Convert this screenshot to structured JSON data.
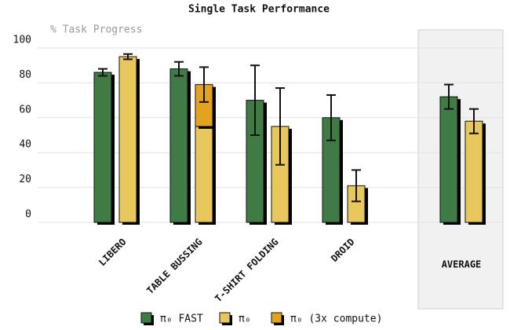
{
  "chart_data": {
    "type": "bar",
    "title": "Single Task Performance",
    "subtitle": "% Task Progress",
    "categories": [
      "LIBERO",
      "TABLE BUSSING",
      "T-SHIRT FOLDING",
      "DROID",
      "AVERAGE"
    ],
    "series": [
      {
        "name": "π₀ FAST",
        "color": "#407a45",
        "values": [
          86,
          88,
          70,
          60,
          72
        ],
        "errors": [
          2,
          4,
          20,
          13,
          7
        ]
      },
      {
        "name": "π₀",
        "color": "#e8c75c",
        "values": [
          95,
          55,
          55,
          21,
          58
        ],
        "errors": [
          1.5,
          null,
          22,
          9,
          7
        ]
      },
      {
        "name": "π₀ (3x compute)",
        "color": "#e3a21f",
        "values": [
          null,
          24,
          null,
          null,
          null
        ],
        "errors": [
          null,
          10,
          null,
          null,
          null
        ]
      }
    ],
    "ylim": [
      0,
      100
    ],
    "yticks": [
      0,
      20,
      40,
      60,
      80,
      100
    ],
    "grid": true,
    "legend": "bottom"
  }
}
